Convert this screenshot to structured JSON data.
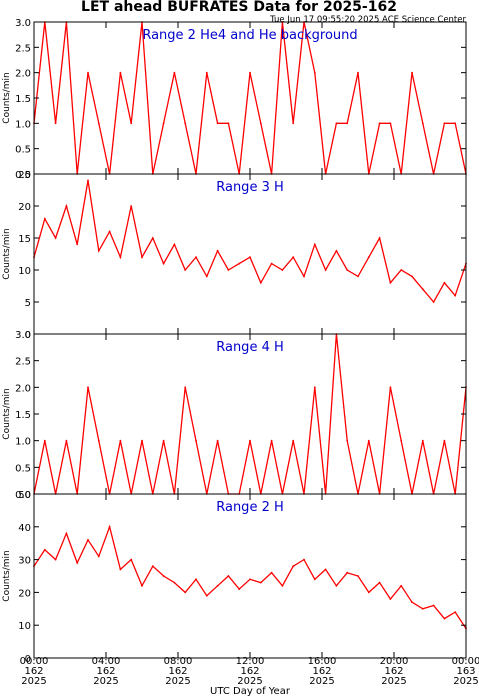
{
  "title": "LET ahead BUFRATES Data for 2025-162",
  "timestamp": "Tue Jun 17 09:55:20 2025 ACE Science Center",
  "xlabel": "UTC Day of Year",
  "x_ticks": [
    {
      "time": "00:00",
      "day": "162",
      "year": "2025"
    },
    {
      "time": "04:00",
      "day": "162",
      "year": "2025"
    },
    {
      "time": "08:00",
      "day": "162",
      "year": "2025"
    },
    {
      "time": "12:00",
      "day": "162",
      "year": "2025"
    },
    {
      "time": "16:00",
      "day": "162",
      "year": "2025"
    },
    {
      "time": "20:00",
      "day": "162",
      "year": "2025"
    },
    {
      "time": "00:00",
      "day": "163",
      "year": "2025"
    }
  ],
  "colors": {
    "data": "#ff0000",
    "label": "#0000cc",
    "axis": "#000000",
    "background": "#ffffff"
  },
  "chart_data": [
    {
      "type": "line",
      "label": "Range 2 He4 and He background",
      "ylabel": "Counts/min",
      "xlim": [
        0,
        24
      ],
      "ylim": [
        0,
        3
      ],
      "yticks": [
        "0.0",
        "0.5",
        "1.0",
        "1.5",
        "2.0",
        "2.5",
        "3.0"
      ],
      "x": [
        0.0,
        0.6,
        1.2,
        1.8,
        2.4,
        3.0,
        3.6,
        4.2,
        4.8,
        5.4,
        6.0,
        6.6,
        7.2,
        7.8,
        8.4,
        9.0,
        9.6,
        10.2,
        10.8,
        11.4,
        12.0,
        12.6,
        13.2,
        13.8,
        14.4,
        15.0,
        15.6,
        16.2,
        16.8,
        17.4,
        18.0,
        18.6,
        19.2,
        19.8,
        20.4,
        21.0,
        21.6,
        22.2,
        22.8,
        23.4,
        24.0
      ],
      "values": [
        1,
        3,
        1,
        3,
        0,
        2,
        1,
        0,
        2,
        1,
        3,
        0,
        1,
        2,
        1,
        0,
        2,
        1,
        1,
        0,
        2,
        1,
        0,
        3,
        1,
        3,
        2,
        0,
        1,
        1,
        2,
        0,
        1,
        1,
        0,
        2,
        1,
        0,
        1,
        1,
        0
      ]
    },
    {
      "type": "line",
      "label": "Range 3 H",
      "ylabel": "Counts/min",
      "xlim": [
        0,
        24
      ],
      "ylim": [
        0,
        25
      ],
      "yticks": [
        "0",
        "5",
        "10",
        "15",
        "20",
        "25"
      ],
      "x": [
        0.0,
        0.6,
        1.2,
        1.8,
        2.4,
        3.0,
        3.6,
        4.2,
        4.8,
        5.4,
        6.0,
        6.6,
        7.2,
        7.8,
        8.4,
        9.0,
        9.6,
        10.2,
        10.8,
        11.4,
        12.0,
        12.6,
        13.2,
        13.8,
        14.4,
        15.0,
        15.6,
        16.2,
        16.8,
        17.4,
        18.0,
        18.6,
        19.2,
        19.8,
        20.4,
        21.0,
        21.6,
        22.2,
        22.8,
        23.4,
        24.0
      ],
      "values": [
        12,
        18,
        15,
        20,
        14,
        24,
        13,
        16,
        12,
        20,
        12,
        15,
        11,
        14,
        10,
        12,
        9,
        13,
        10,
        11,
        12,
        8,
        11,
        10,
        12,
        9,
        14,
        10,
        13,
        10,
        9,
        12,
        15,
        8,
        10,
        9,
        7,
        5,
        8,
        6,
        11
      ]
    },
    {
      "type": "line",
      "label": "Range 4 H",
      "ylabel": "Counts/min",
      "xlim": [
        0,
        24
      ],
      "ylim": [
        0,
        3
      ],
      "yticks": [
        "0.0",
        "0.5",
        "1.0",
        "1.5",
        "2.0",
        "2.5",
        "3.0"
      ],
      "x": [
        0.0,
        0.6,
        1.2,
        1.8,
        2.4,
        3.0,
        3.6,
        4.2,
        4.8,
        5.4,
        6.0,
        6.6,
        7.2,
        7.8,
        8.4,
        9.0,
        9.6,
        10.2,
        10.8,
        11.4,
        12.0,
        12.6,
        13.2,
        13.8,
        14.4,
        15.0,
        15.6,
        16.2,
        16.8,
        17.4,
        18.0,
        18.6,
        19.2,
        19.8,
        20.4,
        21.0,
        21.6,
        22.2,
        22.8,
        23.4,
        24.0
      ],
      "values": [
        0,
        1,
        0,
        1,
        0,
        2,
        1,
        0,
        1,
        0,
        1,
        0,
        1,
        0,
        2,
        1,
        0,
        1,
        0,
        0,
        1,
        0,
        1,
        0,
        1,
        0,
        2,
        0,
        3,
        1,
        0,
        1,
        0,
        2,
        1,
        0,
        1,
        0,
        1,
        0,
        2
      ]
    },
    {
      "type": "line",
      "label": "Range 2 H",
      "ylabel": "Counts/min",
      "xlim": [
        0,
        24
      ],
      "ylim": [
        0,
        50
      ],
      "yticks": [
        "0",
        "10",
        "20",
        "30",
        "40",
        "50"
      ],
      "x": [
        0.0,
        0.6,
        1.2,
        1.8,
        2.4,
        3.0,
        3.6,
        4.2,
        4.8,
        5.4,
        6.0,
        6.6,
        7.2,
        7.8,
        8.4,
        9.0,
        9.6,
        10.2,
        10.8,
        11.4,
        12.0,
        12.6,
        13.2,
        13.8,
        14.4,
        15.0,
        15.6,
        16.2,
        16.8,
        17.4,
        18.0,
        18.6,
        19.2,
        19.8,
        20.4,
        21.0,
        21.6,
        22.2,
        22.8,
        23.4,
        24.0
      ],
      "values": [
        28,
        33,
        30,
        38,
        29,
        36,
        31,
        40,
        27,
        30,
        22,
        28,
        25,
        23,
        20,
        24,
        19,
        22,
        25,
        21,
        24,
        23,
        26,
        22,
        28,
        30,
        24,
        27,
        22,
        26,
        25,
        20,
        23,
        18,
        22,
        17,
        15,
        16,
        12,
        14,
        9
      ]
    }
  ]
}
